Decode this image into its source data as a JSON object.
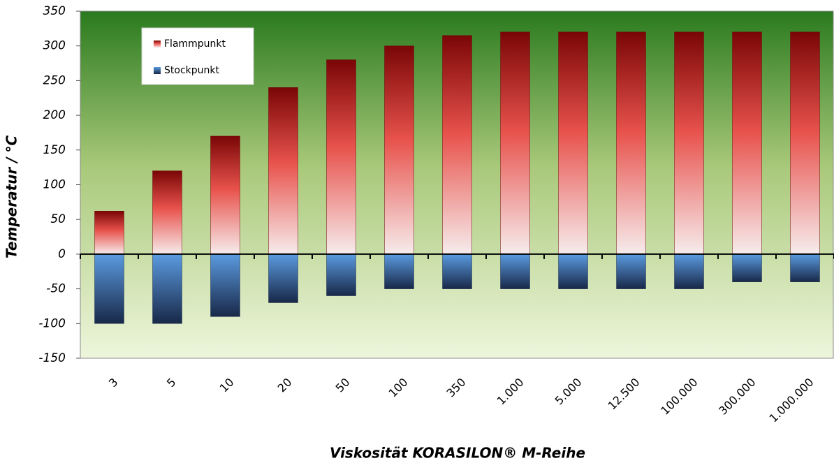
{
  "chart_data": {
    "type": "bar",
    "x_label": "Viskosität KORASILON® M-Reihe",
    "y_label": "Temperatur / °C",
    "categories": [
      "3",
      "5",
      "10",
      "20",
      "50",
      "100",
      "350",
      "1.000",
      "5.000",
      "12.500",
      "100.000",
      "300.000",
      "1.000.000"
    ],
    "series": [
      {
        "name": "Flammpunkt",
        "color": "#e8524c",
        "values": [
          62,
          120,
          170,
          240,
          280,
          300,
          315,
          320,
          320,
          320,
          320,
          320,
          320
        ]
      },
      {
        "name": "Stockpunkt",
        "color": "#5b9be0",
        "values": [
          -100,
          -100,
          -90,
          -70,
          -60,
          -50,
          -50,
          -50,
          -50,
          -50,
          -50,
          -40,
          -40
        ]
      }
    ],
    "ylim": [
      -150,
      350
    ],
    "yticks": [
      -150,
      -100,
      -50,
      0,
      50,
      100,
      150,
      200,
      250,
      300,
      350
    ],
    "legend": "upper left"
  }
}
